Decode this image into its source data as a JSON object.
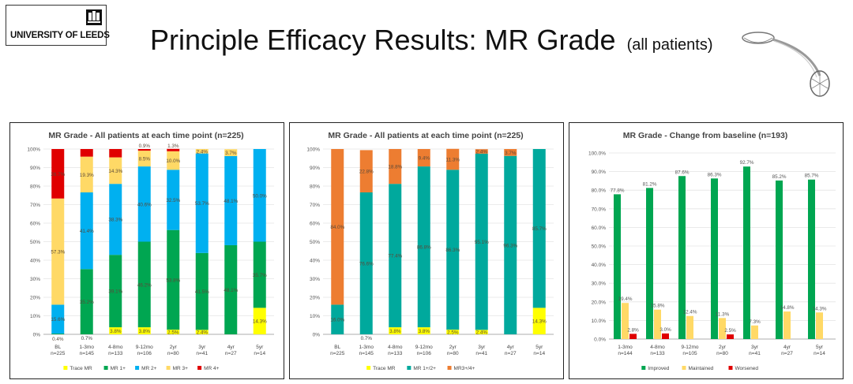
{
  "header": {
    "logo_text": "UNIVERSITY OF LEEDS",
    "title": "Principle Efficacy Results: MR Grade",
    "subtitle": "(all patients)"
  },
  "chart_data": [
    {
      "type": "stacked_bar",
      "title": "MR Grade - All patients at each time point (n=225)",
      "categories": [
        "BL",
        "1-3mo",
        "4-8mo",
        "9-12mo",
        "2yr",
        "3yr",
        "4yr",
        "5yr"
      ],
      "n_labels": [
        "n=225",
        "n=145",
        "n=133",
        "n=106",
        "n=80",
        "n=41",
        "n=27",
        "n=14"
      ],
      "yticks": [
        "0%",
        "10%",
        "20%",
        "30%",
        "40%",
        "50%",
        "60%",
        "70%",
        "80%",
        "90%",
        "100%"
      ],
      "ylim": [
        0,
        100
      ],
      "series": [
        {
          "name": "Trace MR",
          "color": "#ffff00",
          "values": [
            0,
            0,
            3.8,
            3.8,
            2.5,
            2.4,
            0,
            14.3
          ]
        },
        {
          "name": "MR 1+",
          "color": "#00a651",
          "values": [
            0.4,
            35.2,
            39.1,
            46.2,
            53.8,
            41.5,
            48.1,
            35.7
          ]
        },
        {
          "name": "MR 2+",
          "color": "#00b0f0",
          "values": [
            15.6,
            41.4,
            38.3,
            40.6,
            32.5,
            53.7,
            48.1,
            50.0
          ]
        },
        {
          "name": "MR 3+",
          "color": "#ffd966",
          "values": [
            57.3,
            19.3,
            14.3,
            8.5,
            10.0,
            2.4,
            3.7,
            0
          ]
        },
        {
          "name": "MR 4+",
          "color": "#e00000",
          "values": [
            26.7,
            4.1,
            4.5,
            0.9,
            1.3,
            0,
            0,
            0
          ]
        }
      ],
      "labels": [
        [
          null,
          null,
          "3.8%",
          "3.8%",
          "2.5%",
          "2.4%",
          null,
          "14.3%"
        ],
        [
          "0.4%",
          "35.2%",
          "39.1%",
          "46.2%",
          "53.8%",
          "41.5%",
          "48.1%",
          "35.7%"
        ],
        [
          "15.6%",
          "41.4%",
          "38.3%",
          "40.6%",
          "32.5%",
          "53.7%",
          "48.1%",
          "50.0%"
        ],
        [
          "57.3%",
          "19.3%",
          "14.3%",
          "8.5%",
          "10.0%",
          "2.4%",
          "3.7%",
          null
        ],
        [
          "26.7%",
          null,
          null,
          "0.9%",
          "1.3%",
          null,
          null,
          null
        ]
      ],
      "extra_labels": [
        {
          "category": "1-3mo",
          "text": "0.7%"
        }
      ]
    },
    {
      "type": "stacked_bar",
      "title": "MR Grade - All patients at each time point (n=225)",
      "categories": [
        "BL",
        "1-3mo",
        "4-8mo",
        "9-12mo",
        "2yr",
        "3yr",
        "4yr",
        "5yr"
      ],
      "n_labels": [
        "n=225",
        "n=145",
        "n=133",
        "n=106",
        "n=80",
        "n=41",
        "n=27",
        "n=14"
      ],
      "yticks": [
        "0%",
        "10%",
        "20%",
        "30%",
        "40%",
        "50%",
        "60%",
        "70%",
        "80%",
        "90%",
        "100%"
      ],
      "ylim": [
        0,
        100
      ],
      "series": [
        {
          "name": "Trace MR",
          "color": "#ffff00",
          "values": [
            0,
            0,
            3.8,
            3.8,
            2.5,
            2.4,
            0,
            14.3
          ]
        },
        {
          "name": "MR 1+/2+",
          "color": "#00a99d",
          "values": [
            16.0,
            76.6,
            77.4,
            86.8,
            86.3,
            95.1,
            96.3,
            85.7
          ]
        },
        {
          "name": "MR3+/4+",
          "color": "#ed7d31",
          "values": [
            84.0,
            22.8,
            18.8,
            9.4,
            11.3,
            2.4,
            3.7,
            0
          ]
        }
      ],
      "labels": [
        [
          null,
          null,
          "3.8%",
          "3.8%",
          "2.5%",
          "2.4%",
          null,
          "14.3%"
        ],
        [
          "16.0%",
          "76.6%",
          "77.4%",
          "86.8%",
          "86.3%",
          "95.1%",
          "96.3%",
          "85.7%"
        ],
        [
          "84.0%",
          "22.8%",
          "18.8%",
          "9.4%",
          "11.3%",
          "2.4%",
          "3.7%",
          null
        ]
      ],
      "extra_labels": [
        {
          "category": "1-3mo",
          "text": "0.7%"
        }
      ]
    },
    {
      "type": "grouped_bar",
      "title": "MR Grade - Change from baseline (n=193)",
      "categories": [
        "1-3mo",
        "4-8mo",
        "9-12mo",
        "2yr",
        "3yr",
        "4yr",
        "5yr"
      ],
      "n_labels": [
        "n=144",
        "n=133",
        "n=105",
        "n=80",
        "n=41",
        "n=27",
        "n=14"
      ],
      "yticks": [
        "0.0%",
        "10.0%",
        "20.0%",
        "30.0%",
        "40.0%",
        "50.0%",
        "60.0%",
        "70.0%",
        "80.0%",
        "90.0%",
        "100.0%"
      ],
      "ylim": [
        0,
        100
      ],
      "series": [
        {
          "name": "Improved",
          "color": "#00a651",
          "values": [
            77.8,
            81.2,
            87.6,
            86.3,
            92.7,
            85.2,
            85.7
          ]
        },
        {
          "name": "Maintained",
          "color": "#ffd966",
          "values": [
            19.4,
            15.8,
            12.4,
            11.3,
            7.3,
            14.8,
            14.3
          ]
        },
        {
          "name": "Worsened",
          "color": "#e00000",
          "values": [
            2.8,
            3.0,
            0,
            2.5,
            0,
            0,
            0
          ]
        }
      ],
      "labels": [
        [
          "77.8%",
          "81.2%",
          "87.6%",
          "86.3%",
          "92.7%",
          "85.2%",
          "85.7%"
        ],
        [
          "19.4%",
          "15.8%",
          "12.4%",
          "11.3%",
          "7.3%",
          "14.8%",
          "14.3%"
        ],
        [
          "2.8%",
          "3.0%",
          null,
          "2.5%",
          null,
          null,
          null
        ]
      ]
    }
  ]
}
